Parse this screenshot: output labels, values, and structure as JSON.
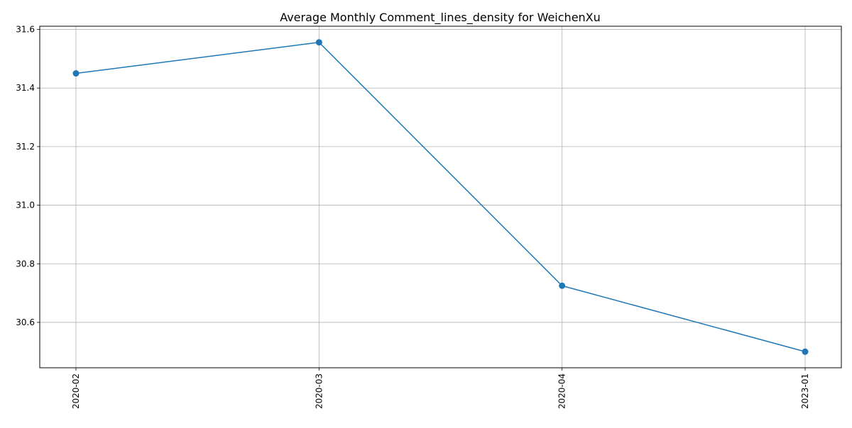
{
  "chart_data": {
    "type": "line",
    "title": "Average Monthly Comment_lines_density for WeichenXu",
    "xlabel": "",
    "ylabel": "",
    "categories": [
      "2020-02",
      "2020-03",
      "2020-04",
      "2023-01"
    ],
    "series": [
      {
        "values": [
          31.45,
          31.556,
          30.725,
          30.5
        ]
      }
    ],
    "ylim": [
      30.445,
      31.611
    ],
    "y_ticks": [
      "30.6",
      "30.8",
      "31.0",
      "31.2",
      "31.4",
      "31.6"
    ],
    "grid": true,
    "markers": true,
    "x_tick_rotation": "vertical",
    "colors": {
      "line": "#1f77b4",
      "grid": "#b0b0b0",
      "axes": "#000000"
    }
  }
}
